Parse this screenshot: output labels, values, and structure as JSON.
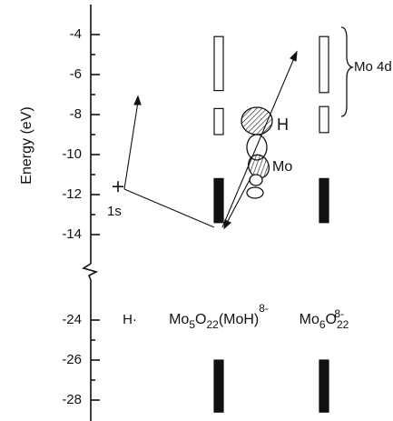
{
  "chart_data": {
    "type": "energy-levels",
    "axis_label": "Energy (eV)",
    "upper_ticks": [
      -4,
      -6,
      -8,
      -10,
      -12,
      -14
    ],
    "lower_ticks": [
      -24,
      -26,
      -28
    ],
    "columns": [
      {
        "name": "H·",
        "bands": []
      },
      {
        "name_parts": [
          "Mo",
          "5",
          "O",
          "22",
          "(MoH)",
          "8-"
        ],
        "bands": [
          {
            "top": -4.1,
            "bottom": -6.8,
            "filled": false
          },
          {
            "top": -7.7,
            "bottom": -9.0,
            "filled": false
          },
          {
            "top": -11.2,
            "bottom": -13.4,
            "filled": true
          },
          {
            "top": -26,
            "bottom": -28.6,
            "filled": true
          }
        ]
      },
      {
        "name_parts": [
          "Mo",
          "6",
          "O",
          "22",
          "8-"
        ],
        "bands": [
          {
            "top": -4.1,
            "bottom": -6.9,
            "filled": false
          },
          {
            "top": -7.6,
            "bottom": -8.9,
            "filled": false
          },
          {
            "top": -11.2,
            "bottom": -13.4,
            "filled": true
          },
          {
            "top": -26,
            "bottom": -28.6,
            "filled": true
          }
        ]
      }
    ],
    "h_level": {
      "label": "1s",
      "energy": -11.6
    },
    "orbital_labels": [
      "H",
      "Mo"
    ],
    "band_label": "Mo 4d"
  }
}
